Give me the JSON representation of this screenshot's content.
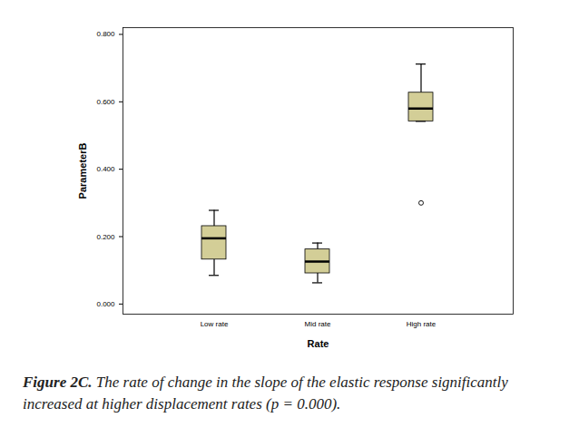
{
  "chart_data": {
    "type": "box",
    "x_label": "Rate",
    "y_label": "ParameterB",
    "categories": [
      "Low rate",
      "Mid rate",
      "High rate"
    ],
    "min": [
      0.085,
      0.063,
      0.542
    ],
    "q1": [
      0.132,
      0.091,
      0.542
    ],
    "median": [
      0.195,
      0.126,
      0.58
    ],
    "q3": [
      0.231,
      0.162,
      0.627
    ],
    "max": [
      0.278,
      0.181,
      0.712
    ],
    "outliers": [
      [],
      [],
      [
        0.3
      ]
    ],
    "color": "#d3ce97",
    "ylim": [
      -0.03,
      0.82
    ],
    "yticks": [
      {
        "value": 0,
        "label": "0.000"
      },
      {
        "value": 0.2,
        "label": "0.200"
      },
      {
        "value": 0.4,
        "label": "0.400"
      },
      {
        "value": 0.6,
        "label": "0.600"
      },
      {
        "value": 0.8,
        "label": "0.800"
      }
    ],
    "grid": false,
    "caption": {
      "label": "Figure 2C.",
      "text": "The rate of change in the slope of the elastic response significantly increased at higher displacement rates (p = 0.000)."
    }
  }
}
